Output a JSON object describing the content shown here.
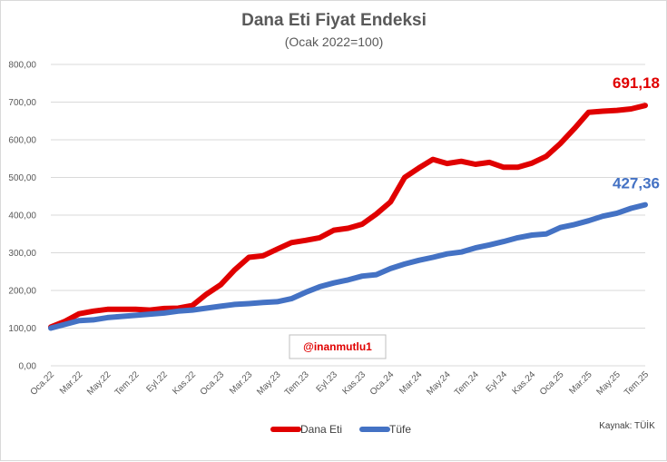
{
  "chart_data": {
    "type": "line",
    "title": "Dana Eti Fiyat Endeksi",
    "subtitle": "(Ocak 2022=100)",
    "ylim": [
      0,
      800
    ],
    "yticks": [
      "0,00",
      "100,00",
      "200,00",
      "300,00",
      "400,00",
      "500,00",
      "600,00",
      "700,00",
      "800,00"
    ],
    "grid": true,
    "categories": [
      "Oca.22",
      "Şub.22",
      "Mar.22",
      "Nis.22",
      "May.22",
      "Haz.22",
      "Tem.22",
      "Ağu.22",
      "Eyl.22",
      "Eki.22",
      "Kas.22",
      "Ara.22",
      "Oca.23",
      "Şub.23",
      "Mar.23",
      "Nis.23",
      "May.23",
      "Haz.23",
      "Tem.23",
      "Ağu.23",
      "Eyl.23",
      "Eki.23",
      "Kas.23",
      "Ara.23",
      "Oca.24",
      "Şub.24",
      "Mar.24",
      "Nis.24",
      "May.24",
      "Haz.24",
      "Tem.24",
      "Ağu.24",
      "Eyl.24",
      "Eki.24",
      "Kas.24",
      "Ara.24",
      "Oca.25",
      "Şub.25",
      "Mar.25",
      "Nis.25",
      "May.25",
      "Haz.25",
      "Tem.25"
    ],
    "x_tick_labels": [
      "Oca.22",
      "Mar.22",
      "May.22",
      "Tem.22",
      "Eyl.22",
      "Kas.22",
      "Oca.23",
      "Mar.23",
      "May.23",
      "Tem.23",
      "Eyl.23",
      "Kas.23",
      "Oca.24",
      "Mar.24",
      "May.24",
      "Tem.24",
      "Eyl.24",
      "Kas.24",
      "Oca.25",
      "Mar.25",
      "May.25",
      "Tem.25"
    ],
    "series": [
      {
        "name": "Dana Eti",
        "color": "#e00000",
        "values": [
          103,
          118,
          138,
          145,
          150,
          150,
          150,
          148,
          152,
          153,
          160,
          190,
          215,
          255,
          288,
          292,
          310,
          327,
          333,
          340,
          360,
          365,
          376,
          403,
          435,
          500,
          525,
          548,
          537,
          543,
          535,
          540,
          527,
          527,
          538,
          556,
          590,
          630,
          673,
          676,
          678,
          682,
          691.18
        ],
        "end_label": "691,18"
      },
      {
        "name": "Tüfe",
        "color": "#4472c4",
        "values": [
          100,
          110,
          120,
          122,
          128,
          131,
          134,
          137,
          140,
          145,
          148,
          153,
          158,
          163,
          165,
          168,
          170,
          178,
          195,
          210,
          220,
          228,
          238,
          242,
          258,
          270,
          280,
          288,
          297,
          302,
          313,
          321,
          330,
          340,
          347,
          350,
          367,
          375,
          385,
          397,
          405,
          418,
          427.36
        ],
        "end_label": "427,36"
      }
    ],
    "legend_position": "bottom"
  },
  "watermark": "@inanmutlu1",
  "source": "Kaynak: TÜİK"
}
